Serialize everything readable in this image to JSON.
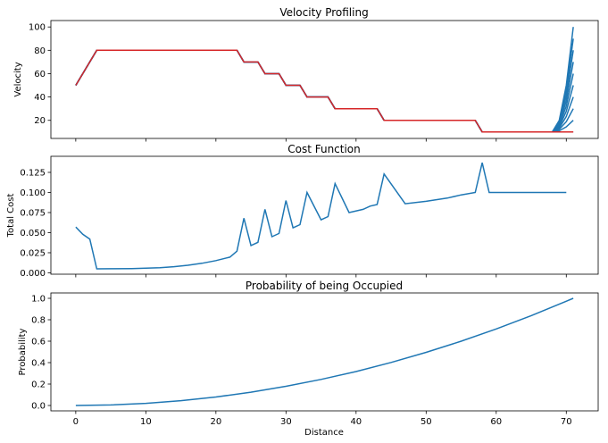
{
  "chart_data": [
    {
      "type": "line",
      "title": "Velocity Profiling",
      "xlabel": "",
      "ylabel": "Velocity",
      "xlim": [
        -3.55,
        74.55
      ],
      "ylim": [
        4.5,
        105.5
      ],
      "yticks": [
        20,
        40,
        60,
        80,
        100
      ],
      "xticks": [
        0,
        10,
        20,
        30,
        40,
        50,
        60,
        70
      ],
      "xtick_labels_visible": false,
      "colors": {
        "profile_lines": "#1f77b4",
        "optimal_line": "#d62728"
      },
      "series": [
        {
          "x": [
            0,
            3,
            23,
            24,
            26,
            27,
            29,
            30,
            32,
            33,
            36,
            37,
            43,
            44,
            57,
            58,
            71
          ],
          "y": [
            50,
            80,
            80,
            70,
            70,
            60,
            60,
            50,
            50,
            40,
            40,
            30,
            30,
            20,
            20,
            10,
            10
          ]
        }
      ],
      "endpoint_bundle": {
        "x": [
          68,
          69,
          70,
          71
        ],
        "finals": [
          10,
          20,
          30,
          40,
          50,
          60,
          70,
          80,
          90,
          100
        ]
      }
    },
    {
      "type": "line",
      "title": "Cost Function",
      "xlabel": "",
      "ylabel": "Total Cost",
      "xlim": [
        -3.55,
        74.55
      ],
      "ylim": [
        -0.0017,
        0.145
      ],
      "yticks": [
        0.0,
        0.025,
        0.05,
        0.075,
        0.1,
        0.125
      ],
      "ytick_labels": [
        "0.000",
        "0.025",
        "0.050",
        "0.075",
        "0.100",
        "0.125"
      ],
      "xticks": [
        0,
        10,
        20,
        30,
        40,
        50,
        60,
        70
      ],
      "xtick_labels_visible": false,
      "colors": {
        "line": "#1f77b4"
      },
      "series": [
        {
          "x": [
            0,
            1,
            2,
            3,
            5,
            8,
            10,
            12,
            14,
            16,
            18,
            20,
            22,
            23,
            24,
            25,
            26,
            27,
            28,
            29,
            30,
            31,
            32,
            33,
            35,
            36,
            37,
            39,
            41,
            42,
            43,
            44,
            47,
            50,
            53,
            55,
            57,
            58,
            59,
            60,
            62,
            65,
            68,
            70
          ],
          "y": [
            0.057,
            0.048,
            0.042,
            0.005,
            0.0051,
            0.0053,
            0.0057,
            0.0064,
            0.0076,
            0.0094,
            0.0119,
            0.0152,
            0.0195,
            0.027,
            0.068,
            0.034,
            0.038,
            0.079,
            0.045,
            0.049,
            0.09,
            0.056,
            0.06,
            0.1,
            0.066,
            0.07,
            0.111,
            0.075,
            0.079,
            0.083,
            0.085,
            0.123,
            0.086,
            0.089,
            0.093,
            0.097,
            0.1,
            0.137,
            0.1,
            0.1,
            0.1,
            0.1,
            0.1,
            0.1
          ]
        }
      ]
    },
    {
      "type": "line",
      "title": "Probability of being Occupied",
      "xlabel": "Distance",
      "ylabel": "Probability",
      "xlim": [
        -3.55,
        74.55
      ],
      "ylim": [
        -0.05,
        1.05
      ],
      "yticks": [
        0.0,
        0.2,
        0.4,
        0.6,
        0.8,
        1.0
      ],
      "ytick_labels": [
        "0.0",
        "0.2",
        "0.4",
        "0.6",
        "0.8",
        "1.0"
      ],
      "xticks": [
        0,
        10,
        20,
        30,
        40,
        50,
        60,
        70
      ],
      "xtick_labels": [
        "0",
        "10",
        "20",
        "30",
        "40",
        "50",
        "60",
        "70"
      ],
      "xtick_labels_visible": true,
      "colors": {
        "line": "#1f77b4"
      },
      "series": [
        {
          "x": [
            0,
            5,
            10,
            15,
            20,
            25,
            30,
            35,
            40,
            45,
            50,
            55,
            60,
            65,
            71
          ],
          "y": [
            0.0,
            0.005,
            0.02,
            0.045,
            0.079,
            0.124,
            0.179,
            0.243,
            0.317,
            0.402,
            0.496,
            0.6,
            0.714,
            0.838,
            1.0
          ]
        }
      ]
    }
  ]
}
